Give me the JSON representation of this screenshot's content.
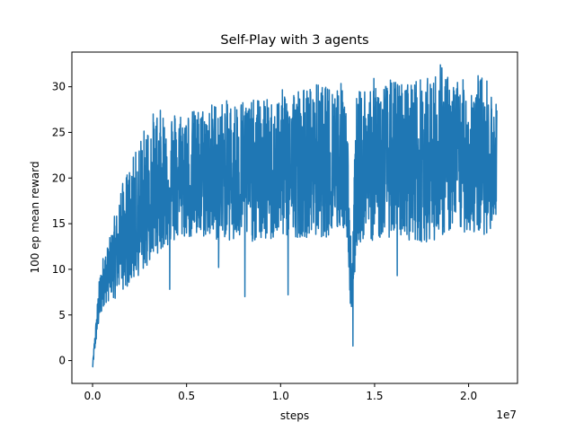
{
  "chart_data": {
    "type": "line",
    "title": "Self-Play with 3 agents",
    "xlabel": "steps",
    "ylabel": "100 ep mean reward",
    "x_offset_label": "1e7",
    "x_scale_factor": 10000000,
    "xlim": [
      -1100000,
      22600000
    ],
    "ylim": [
      -2.5,
      33.8
    ],
    "x_ticks": [
      0,
      5000000,
      10000000,
      15000000,
      20000000
    ],
    "x_tick_labels": [
      "0.0",
      "0.5",
      "1.0",
      "1.5",
      "2.0"
    ],
    "y_ticks": [
      0,
      5,
      10,
      15,
      20,
      25,
      30
    ],
    "y_tick_labels": [
      "0",
      "5",
      "10",
      "15",
      "20",
      "25",
      "30"
    ],
    "grid": false,
    "legend": "none",
    "series": [
      {
        "color": "#1f77b4",
        "x": [
          0,
          100000,
          200000,
          300000,
          400000,
          500000,
          600000,
          800000,
          1000000,
          1200000,
          1500000,
          1800000,
          2000000,
          2300000,
          2600000,
          3000000,
          3300000,
          3600000,
          4000000,
          4500000,
          5000000,
          5500000,
          6000000,
          6500000,
          7000000,
          7500000,
          8000000,
          8500000,
          9000000,
          9500000,
          10000000,
          10500000,
          11000000,
          11500000,
          12000000,
          12500000,
          13000000,
          13500000,
          13800000,
          14000000,
          14500000,
          15000000,
          15500000,
          16000000,
          16500000,
          17000000,
          17500000,
          18000000,
          18500000,
          19000000,
          19500000,
          20000000,
          20500000,
          21000000,
          21500000
        ],
        "mean": [
          -0.8,
          1.5,
          3.5,
          5.5,
          7,
          8,
          9,
          9.5,
          10.5,
          11.5,
          12.5,
          13,
          13.5,
          14.5,
          15.5,
          16.5,
          17.5,
          18.5,
          18.5,
          19.5,
          19.5,
          19.5,
          19.5,
          20,
          20,
          20,
          20,
          20,
          20,
          20,
          20.5,
          20.5,
          20.5,
          20.5,
          20.5,
          20.5,
          21,
          21,
          5,
          19.5,
          21,
          21,
          21,
          21,
          21,
          21,
          21,
          21,
          21,
          21,
          21.5,
          21.5,
          21.5,
          21.5,
          21.5
        ],
        "upper": [
          -0.5,
          2.5,
          5,
          8,
          10.5,
          12,
          13,
          13.5,
          15,
          17.5,
          19,
          20.5,
          21.5,
          23,
          25,
          26.5,
          27.5,
          27.5,
          27.5,
          27.5,
          27.5,
          27.5,
          28,
          28.5,
          28.5,
          28.5,
          29,
          28.5,
          29,
          28.5,
          29.5,
          30.5,
          30,
          30,
          30.5,
          30,
          31,
          30,
          9,
          29,
          30.5,
          31,
          30.5,
          31,
          30.5,
          31,
          31,
          31,
          32.5,
          31,
          31,
          30.5,
          31.5,
          31,
          28
        ],
        "lower": [
          -1,
          0.5,
          2,
          3,
          4.5,
          5.5,
          6.5,
          6.5,
          7,
          7,
          7.5,
          8,
          8.5,
          9,
          9.5,
          10.5,
          11.5,
          12,
          12.5,
          13,
          13.5,
          13,
          13.5,
          13,
          13.5,
          12.5,
          13.5,
          13,
          13,
          13,
          13.5,
          13.5,
          13.5,
          13.5,
          13.5,
          13.5,
          14,
          14.5,
          1.5,
          12,
          13.5,
          13,
          13.5,
          13.5,
          13.5,
          13,
          13,
          13,
          13.5,
          14,
          14,
          14,
          13.5,
          14,
          14
        ]
      }
    ],
    "notable_points": [
      {
        "x": 4100000,
        "y": 7.8
      },
      {
        "x": 6700000,
        "y": 10.2
      },
      {
        "x": 8100000,
        "y": 7.0
      },
      {
        "x": 10400000,
        "y": 7.2
      },
      {
        "x": 13850000,
        "y": 1.6
      },
      {
        "x": 16200000,
        "y": 9.3
      },
      {
        "x": 18500000,
        "y": 32.4
      }
    ]
  }
}
